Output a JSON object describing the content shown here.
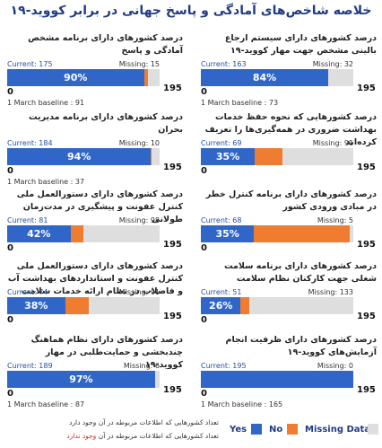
{
  "title": "خلاصه شاخص‌های آمادگی و پاسخ جهانی در برابر کووید-۱۹",
  "labels": {
    "current": "Current:",
    "missing": "Missing:",
    "baseline": "1 March baseline :",
    "zero": "0"
  },
  "colors": {
    "yes": "#2f66c8",
    "no": "#ee7d31",
    "missing": "#dedede"
  },
  "panels": [
    {
      "title": "درصد کشورهای دارای سیستم ارجاع بالینی مشخص جهت مهار کووید-۱۹",
      "current": 163,
      "no": 0,
      "missing": 32,
      "total": 195,
      "pct_label": "84%",
      "baseline": 73
    },
    {
      "title": "درصد کشورهایی که نحوه حفظ خدمات بهداشت ضروری در همه‌گیری‌ها را تعریف کرده‌اند",
      "current": 69,
      "no": 35,
      "missing": 91,
      "total": 195,
      "pct_label": "35%"
    },
    {
      "title": "درصد کشورهای دارای برنامه کنترل خطر در مبادی ورودی کشور",
      "current": 68,
      "no": 122,
      "missing": 5,
      "total": 195,
      "pct_label": "35%"
    },
    {
      "title": "درصد کشورهای دارای برنامه سلامت شغلی جهت کارکنان نظام سلامت",
      "current": 51,
      "no": 11,
      "missing": 133,
      "total": 195,
      "pct_label": "26%"
    },
    {
      "title": "درصد کشورهای دارای ظرفیت انجام آزمایش‌های کووید-۱۹",
      "current": 195,
      "no": 0,
      "missing": 0,
      "total": 195,
      "baseline": 165
    },
    {
      "title": "درصد کشورهای دارای برنامه مشخص آمادگی و پاسخ",
      "current": 175,
      "no": 5,
      "missing": 15,
      "total": 195,
      "pct_label": "90%",
      "baseline": 91
    },
    {
      "title": "درصد کشورهای دارای برنامه مدیریت بحران",
      "current": 184,
      "no": 1,
      "missing": 10,
      "total": 195,
      "pct_label": "94%",
      "baseline": 37
    },
    {
      "title": "درصد کشورهای دارای دستورالعمل ملی کنترل عفونت و پیشگیری در مدت‌زمان طولانی",
      "current": 81,
      "no": 16,
      "missing": 98,
      "total": 195,
      "pct_label": "42%"
    },
    {
      "title": "درصد کشورهای دارای دستورالعمل ملی کنترل عفونت و استانداردهای بهداشت آب و فاضلاب در نظام ارائه خدمات سلامت",
      "current": 74,
      "no": 30,
      "missing": 91,
      "total": 195,
      "pct_label": "38%"
    },
    {
      "title": "درصد کشورهای دارای نظام هماهنگ چندبخشی و حمایت‌طلبی در مهار کووید-۱۹",
      "current": 189,
      "no": 0,
      "missing": 6,
      "total": 195,
      "pct_label": "97%",
      "baseline": 87
    }
  ],
  "legend": {
    "yes": "Yes",
    "no": "No",
    "missing": "Missing Data"
  },
  "footnotes": {
    "line1": "تعداد کشورهایی که اطلاعات مربوطه در آن وجود دارد",
    "line2_start": "تعداد کشورهایی که اطلاعات مربوطه در آن",
    "line2_red": "وجود ندارد"
  }
}
